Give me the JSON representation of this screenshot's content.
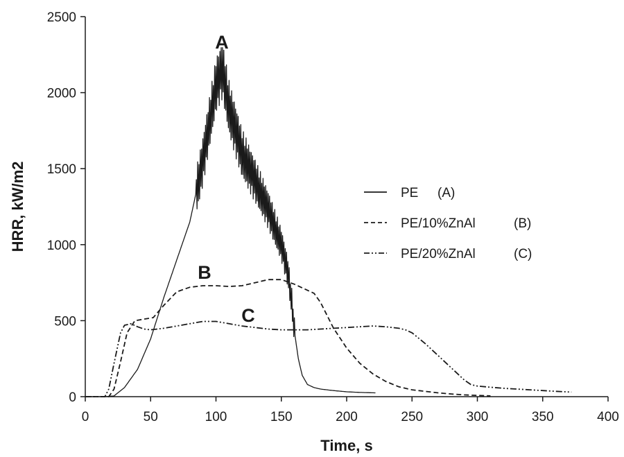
{
  "chart_data": {
    "type": "line",
    "title": "",
    "xlabel": "Time, s",
    "ylabel": "HRR, kW/m2",
    "xlim": [
      0,
      400
    ],
    "ylim": [
      0,
      2500
    ],
    "x_ticks": [
      0,
      50,
      100,
      150,
      200,
      250,
      300,
      350,
      400
    ],
    "y_ticks": [
      0,
      500,
      1000,
      1500,
      2000,
      2500
    ],
    "grid": false,
    "legend_position": "right",
    "series": [
      {
        "name": "PE",
        "legend_tag": "(A)",
        "curve_label": "A",
        "line_style": "solid",
        "noisy": true,
        "x": [
          0,
          15,
          22,
          30,
          40,
          50,
          60,
          70,
          80,
          90,
          95,
          100,
          105,
          110,
          115,
          120,
          130,
          140,
          150,
          155,
          158,
          160,
          163,
          166,
          170,
          175,
          180,
          190,
          200,
          210,
          222
        ],
        "y": [
          0,
          0,
          5,
          60,
          180,
          380,
          650,
          900,
          1150,
          1550,
          1800,
          2050,
          2150,
          1900,
          1750,
          1600,
          1420,
          1230,
          1000,
          820,
          620,
          430,
          250,
          140,
          80,
          60,
          50,
          40,
          32,
          28,
          25
        ]
      },
      {
        "name": "PE/10%ZnAl",
        "legend_tag": "(B)",
        "curve_label": "B",
        "line_style": "dashed",
        "x": [
          0,
          18,
          22,
          27,
          32,
          38,
          45,
          52,
          60,
          70,
          80,
          90,
          100,
          110,
          120,
          130,
          140,
          150,
          160,
          170,
          175,
          180,
          190,
          200,
          210,
          220,
          230,
          240,
          250,
          260,
          270,
          280,
          290,
          300,
          310
        ],
        "y": [
          0,
          0,
          50,
          230,
          420,
          500,
          510,
          520,
          600,
          690,
          720,
          730,
          730,
          725,
          730,
          750,
          770,
          770,
          740,
          700,
          680,
          620,
          450,
          320,
          220,
          150,
          100,
          65,
          45,
          35,
          25,
          18,
          12,
          8,
          5
        ]
      },
      {
        "name": "PE/20%ZnAl",
        "legend_tag": "(C)",
        "curve_label": "C",
        "line_style": "dash-dot-dot",
        "x": [
          0,
          15,
          18,
          22,
          27,
          30,
          35,
          40,
          45,
          50,
          60,
          70,
          80,
          90,
          100,
          110,
          120,
          130,
          140,
          150,
          160,
          170,
          180,
          190,
          200,
          210,
          220,
          230,
          240,
          245,
          250,
          260,
          270,
          280,
          290,
          295,
          300,
          310,
          320,
          330,
          340,
          350,
          360,
          372
        ],
        "y": [
          0,
          0,
          50,
          220,
          420,
          470,
          480,
          460,
          445,
          440,
          450,
          465,
          480,
          495,
          495,
          480,
          465,
          455,
          445,
          440,
          440,
          440,
          445,
          450,
          455,
          460,
          465,
          460,
          450,
          440,
          420,
          350,
          270,
          190,
          110,
          80,
          70,
          62,
          55,
          50,
          45,
          40,
          35,
          30
        ]
      }
    ]
  }
}
